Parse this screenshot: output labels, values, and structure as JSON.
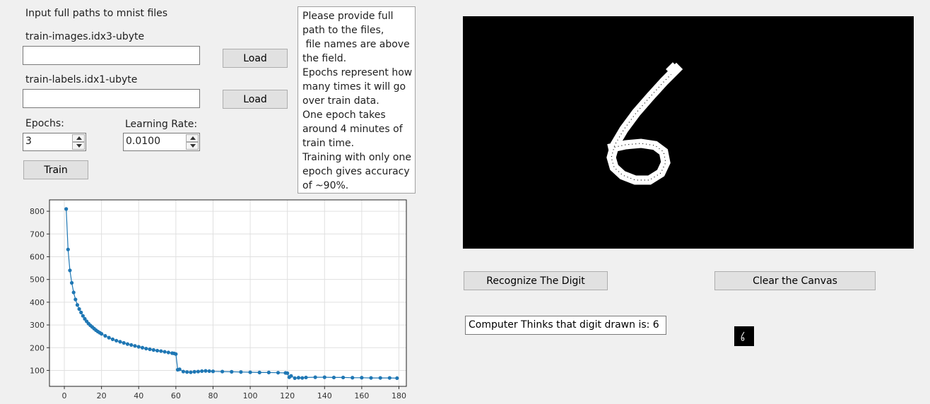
{
  "header": {
    "instruction": "Input full paths to mnist files"
  },
  "files": {
    "images_label": "train-images.idx3-ubyte",
    "images_value": "",
    "labels_label": "train-labels.idx1-ubyte",
    "labels_value": "",
    "load_label": "Load"
  },
  "training": {
    "epochs_label": "Epochs:",
    "epochs_value": "3",
    "lr_label": "Learning Rate:",
    "lr_value": "0.0100",
    "train_label": "Train"
  },
  "info_lines": [
    "Please provide full",
    "path to the files,",
    " file names are above",
    "the field.",
    "Epochs represent how",
    "many times it will go",
    "over train data.",
    "One epoch takes",
    "around 4 minutes of",
    "train time.",
    "Training with only one",
    "epoch gives accuracy",
    "of ~90%."
  ],
  "recognize": {
    "recognize_label": "Recognize The Digit",
    "clear_label": "Clear the Canvas",
    "result_text": "Computer Thinks that digit drawn is: 6"
  },
  "drawing": {
    "digit": "6",
    "ink_color": "#ffffff",
    "canvas_color": "#000000"
  },
  "colors": {
    "series": "#1f77b4",
    "grid": "#e0e0e0"
  },
  "chart_data": {
    "type": "line",
    "title": "",
    "xlabel": "",
    "ylabel": "",
    "xlim": [
      -8,
      184
    ],
    "ylim": [
      30,
      850
    ],
    "xticks": [
      0,
      20,
      40,
      60,
      80,
      100,
      120,
      140,
      160,
      180
    ],
    "yticks": [
      100,
      200,
      300,
      400,
      500,
      600,
      700,
      800
    ],
    "grid": true,
    "markers": true,
    "series": [
      {
        "name": "",
        "x": [
          1,
          2,
          3,
          4,
          5,
          6,
          7,
          8,
          9,
          10,
          11,
          12,
          13,
          14,
          15,
          16,
          17,
          18,
          19,
          20,
          22,
          24,
          26,
          28,
          30,
          32,
          34,
          36,
          38,
          40,
          42,
          44,
          46,
          48,
          50,
          52,
          54,
          56,
          58,
          59,
          60,
          61,
          62,
          64,
          66,
          68,
          70,
          72,
          74,
          76,
          78,
          80,
          85,
          90,
          95,
          100,
          105,
          110,
          115,
          119,
          120,
          121,
          122,
          124,
          126,
          128,
          130,
          135,
          140,
          145,
          150,
          155,
          160,
          165,
          170,
          175,
          179
        ],
        "y": [
          810,
          632,
          540,
          485,
          443,
          412,
          388,
          370,
          355,
          340,
          327,
          316,
          306,
          298,
          291,
          284,
          277,
          271,
          266,
          261,
          252,
          244,
          237,
          231,
          226,
          221,
          216,
          212,
          208,
          204,
          200,
          196,
          193,
          190,
          187,
          185,
          182,
          179,
          176,
          175,
          172,
          103,
          105,
          95,
          93,
          92,
          94,
          95,
          97,
          98,
          97,
          96,
          95,
          94,
          93,
          92,
          91,
          91,
          90,
          89,
          88,
          70,
          76,
          66,
          68,
          67,
          69,
          70,
          70,
          69,
          69,
          68,
          68,
          67,
          67,
          67,
          66
        ]
      }
    ]
  }
}
